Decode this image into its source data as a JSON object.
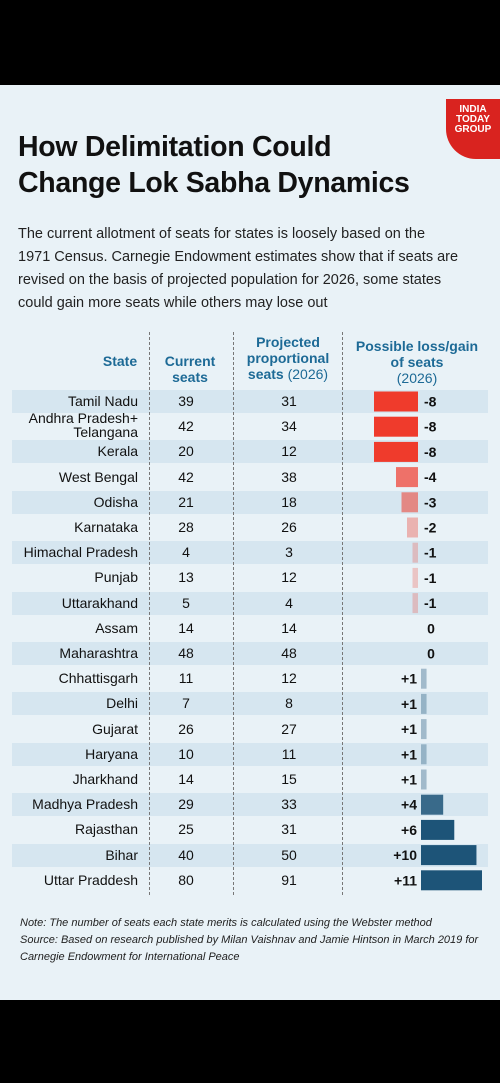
{
  "brand": {
    "line1": "INDIA",
    "line2": "TODAY",
    "line3": "GROUP"
  },
  "title_lines": [
    "How Delimitation Could",
    "Change Lok Sabha Dynamics"
  ],
  "intro_lines": [
    "The current allotment of seats for states is loosely based on the",
    "1971 Census. Carnegie Endowment estimates show that if seats are",
    "revised on the basis of projected population for 2026, some states",
    "could gain more seats while others may lose out"
  ],
  "headers": {
    "state": "State",
    "current": [
      "Current",
      "seats"
    ],
    "projected": [
      "Projected",
      "proportional",
      "seats"
    ],
    "projected_year": "(2026)",
    "change": [
      "Possible loss/gain",
      "of seats"
    ],
    "change_year": "(2026)"
  },
  "colors": {
    "loss": "#ef3b2c",
    "gain": "#1d5478",
    "header": "#1d6a96"
  },
  "chart_data": {
    "type": "table",
    "columns": [
      "State",
      "Current seats",
      "Projected proportional seats (2026)",
      "Possible loss/gain of seats (2026)"
    ],
    "rows": [
      {
        "state": [
          "Tamil Nadu"
        ],
        "current": "39",
        "projected": "31",
        "change": -8,
        "label": "-8"
      },
      {
        "state": [
          "Andhra Pradesh+",
          "Telangana"
        ],
        "current": "42",
        "projected": "34",
        "change": -8,
        "label": "-8"
      },
      {
        "state": [
          "Kerala"
        ],
        "current": "20",
        "projected": "12",
        "change": -8,
        "label": "-8"
      },
      {
        "state": [
          "West Bengal"
        ],
        "current": "42",
        "projected": "38",
        "change": -4,
        "label": "-4"
      },
      {
        "state": [
          "Odisha"
        ],
        "current": "21",
        "projected": "18",
        "change": -3,
        "label": "-3"
      },
      {
        "state": [
          "Karnataka"
        ],
        "current": "28",
        "projected": "26",
        "change": -2,
        "label": "-2"
      },
      {
        "state": [
          "Himachal Pradesh"
        ],
        "current": "4",
        "projected": "3",
        "change": -1,
        "label": "-1"
      },
      {
        "state": [
          "Punjab"
        ],
        "current": "13",
        "projected": "12",
        "change": -1,
        "label": "-1"
      },
      {
        "state": [
          "Uttarakhand"
        ],
        "current": "5",
        "projected": "4",
        "change": -1,
        "label": "-1"
      },
      {
        "state": [
          "Assam"
        ],
        "current": "14",
        "projected": "14",
        "change": 0,
        "label": "0"
      },
      {
        "state": [
          "Maharashtra"
        ],
        "current": "48",
        "projected": "48",
        "change": 0,
        "label": "0"
      },
      {
        "state": [
          "Chhattisgarh"
        ],
        "current": "11",
        "projected": "12",
        "change": 1,
        "label": "+1"
      },
      {
        "state": [
          "Delhi"
        ],
        "current": "7",
        "projected": "8",
        "change": 1,
        "label": "+1"
      },
      {
        "state": [
          "Gujarat"
        ],
        "current": "26",
        "projected": "27",
        "change": 1,
        "label": "+1"
      },
      {
        "state": [
          "Haryana"
        ],
        "current": "10",
        "projected": "11",
        "change": 1,
        "label": "+1"
      },
      {
        "state": [
          "Jharkhand"
        ],
        "current": "14",
        "projected": "15",
        "change": 1,
        "label": "+1"
      },
      {
        "state": [
          "Madhya Pradesh"
        ],
        "current": "29",
        "projected": "33",
        "change": 4,
        "label": "+4"
      },
      {
        "state": [
          "Rajasthan"
        ],
        "current": "25",
        "projected": "31",
        "change": 6,
        "label": "+6"
      },
      {
        "state": [
          "Bihar"
        ],
        "current": "40",
        "projected": "50",
        "change": 10,
        "label": "+10"
      },
      {
        "state": [
          "Uttar Praddesh"
        ],
        "current": "80",
        "projected": "91",
        "change": 11,
        "label": "+11"
      }
    ]
  },
  "note_lines": [
    "Note: The number of seats each state merits is calculated using the Webster method",
    "Source: Based on research published by Milan Vaishnav and Jamie Hintson in March 2019 for",
    "Carnegie Endowment for International Peace"
  ]
}
